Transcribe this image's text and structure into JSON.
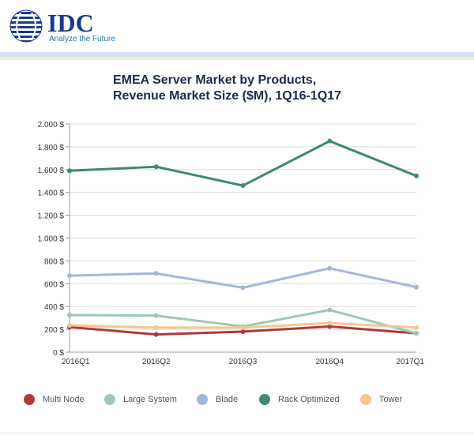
{
  "brand": {
    "name": "IDC",
    "tagline": "Analyze the Future",
    "accent": "#1a3a8a",
    "tagline_color": "#2a6fb5"
  },
  "chart_data": {
    "type": "line",
    "title": "EMEA Server Market by Products, Revenue Market Size ($M), 1Q16-1Q17",
    "title_lines": [
      "EMEA Server Market by Products,",
      "Revenue Market Size ($M), 1Q16-1Q17"
    ],
    "categories": [
      "2016Q1",
      "2016Q2",
      "2016Q3",
      "2016Q4",
      "2017Q1"
    ],
    "ylim": [
      0,
      2000
    ],
    "y_ticks": [
      0,
      200,
      400,
      600,
      800,
      1000,
      1200,
      1400,
      1600,
      1800,
      2000
    ],
    "y_tick_labels": [
      "0 $",
      "200 $",
      "400 $",
      "600 $",
      "800 $",
      "1.000 $",
      "1.200 $",
      "1.400 $",
      "1.600 $",
      "1.800 $",
      "2.000 $"
    ],
    "grid": true,
    "legend_position": "bottom",
    "series": [
      {
        "name": "Multi Node",
        "color": "#b03a3a",
        "values": [
          220,
          155,
          180,
          225,
          165
        ]
      },
      {
        "name": "Large System",
        "color": "#9ec8b4",
        "values": [
          325,
          320,
          225,
          370,
          165
        ]
      },
      {
        "name": "Blade",
        "color": "#a4b6da",
        "values": [
          670,
          690,
          565,
          735,
          570
        ]
      },
      {
        "name": "Rack Optimized",
        "color": "#3e8a6a",
        "values": [
          1590,
          1625,
          1460,
          1850,
          1545
        ]
      },
      {
        "name": "Tower",
        "color": "#f3c98e",
        "values": [
          235,
          215,
          215,
          255,
          215
        ]
      }
    ]
  }
}
